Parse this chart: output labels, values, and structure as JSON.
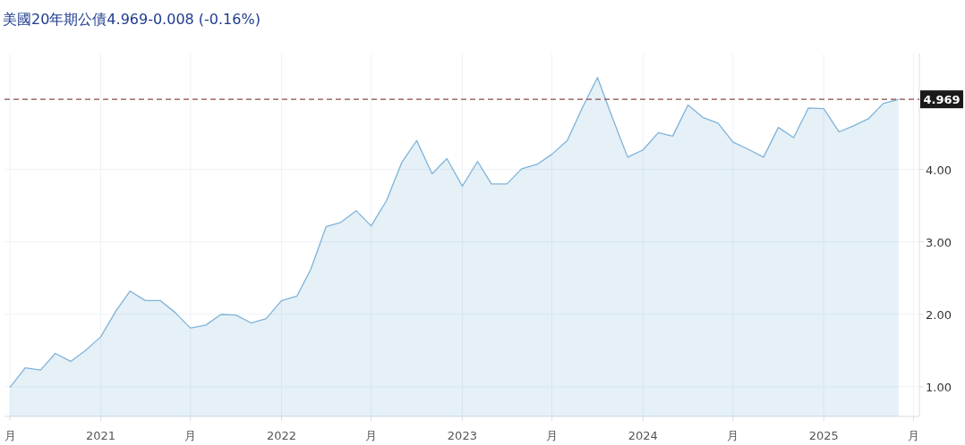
{
  "chart_data": {
    "type": "area",
    "title": "美國20年期公債4.969-0.008 (-0.16%)",
    "x": [
      "2020-07",
      "2020-08",
      "2020-09",
      "2020-10",
      "2020-11",
      "2020-12",
      "2021-01",
      "2021-02",
      "2021-03",
      "2021-04",
      "2021-05",
      "2021-06",
      "2021-07",
      "2021-08",
      "2021-09",
      "2021-10",
      "2021-11",
      "2021-12",
      "2022-01",
      "2022-02",
      "2022-03",
      "2022-04",
      "2022-05",
      "2022-06",
      "2022-07",
      "2022-08",
      "2022-09",
      "2022-10",
      "2022-11",
      "2022-12",
      "2023-01",
      "2023-02",
      "2023-03",
      "2023-04",
      "2023-05",
      "2023-06",
      "2023-07",
      "2023-08",
      "2023-09",
      "2023-10",
      "2023-11",
      "2023-12",
      "2024-01",
      "2024-02",
      "2024-03",
      "2024-04",
      "2024-05",
      "2024-06",
      "2024-07",
      "2024-08",
      "2024-09",
      "2024-10",
      "2024-11",
      "2024-12",
      "2025-01",
      "2025-02",
      "2025-03",
      "2025-04",
      "2025-05",
      "2025-06"
    ],
    "series": [
      {
        "color": "#7fb3d9",
        "values": [
          0.99,
          1.26,
          1.23,
          1.46,
          1.35,
          1.5,
          1.69,
          2.05,
          2.32,
          2.19,
          2.19,
          2.02,
          1.81,
          1.85,
          2.0,
          1.99,
          1.88,
          1.94,
          2.19,
          2.25,
          2.62,
          3.21,
          3.27,
          3.43,
          3.22,
          3.57,
          4.1,
          4.4,
          3.94,
          4.15,
          3.77,
          4.11,
          3.8,
          3.8,
          4.01,
          4.07,
          4.21,
          4.4,
          4.86,
          5.27,
          4.7,
          4.17,
          4.27,
          4.51,
          4.46,
          4.89,
          4.72,
          4.64,
          4.38,
          4.28,
          4.17,
          4.58,
          4.44,
          4.85,
          4.84,
          4.52,
          4.6,
          4.7,
          4.91,
          4.97
        ]
      }
    ],
    "xlim": [
      "2020-06-20",
      "2025-07-13"
    ],
    "xticks": [
      {
        "value": "2020-07",
        "label": "月"
      },
      {
        "value": "2021",
        "label": "2021"
      },
      {
        "value": "2021-07",
        "label": "月"
      },
      {
        "value": "2022",
        "label": "2022"
      },
      {
        "value": "2022-07",
        "label": "月"
      },
      {
        "value": "2023",
        "label": "2023"
      },
      {
        "value": "2023-07",
        "label": "月"
      },
      {
        "value": "2024",
        "label": "2024"
      },
      {
        "value": "2024-07",
        "label": "月"
      },
      {
        "value": "2025",
        "label": "2025"
      },
      {
        "value": "2025-07",
        "label": "月"
      }
    ],
    "ylim": [
      0.59,
      5.6
    ],
    "yticks": [
      {
        "value": 1,
        "label": "1.00"
      },
      {
        "value": 2,
        "label": "2.00"
      },
      {
        "value": 3,
        "label": "3.00"
      },
      {
        "value": 4,
        "label": "4.00"
      }
    ],
    "ref_lines": [
      {
        "axis": "y",
        "value": 4.969,
        "label": "4.969",
        "color": "#8b4a4a",
        "line_style": "dashed"
      }
    ],
    "grid": true
  }
}
